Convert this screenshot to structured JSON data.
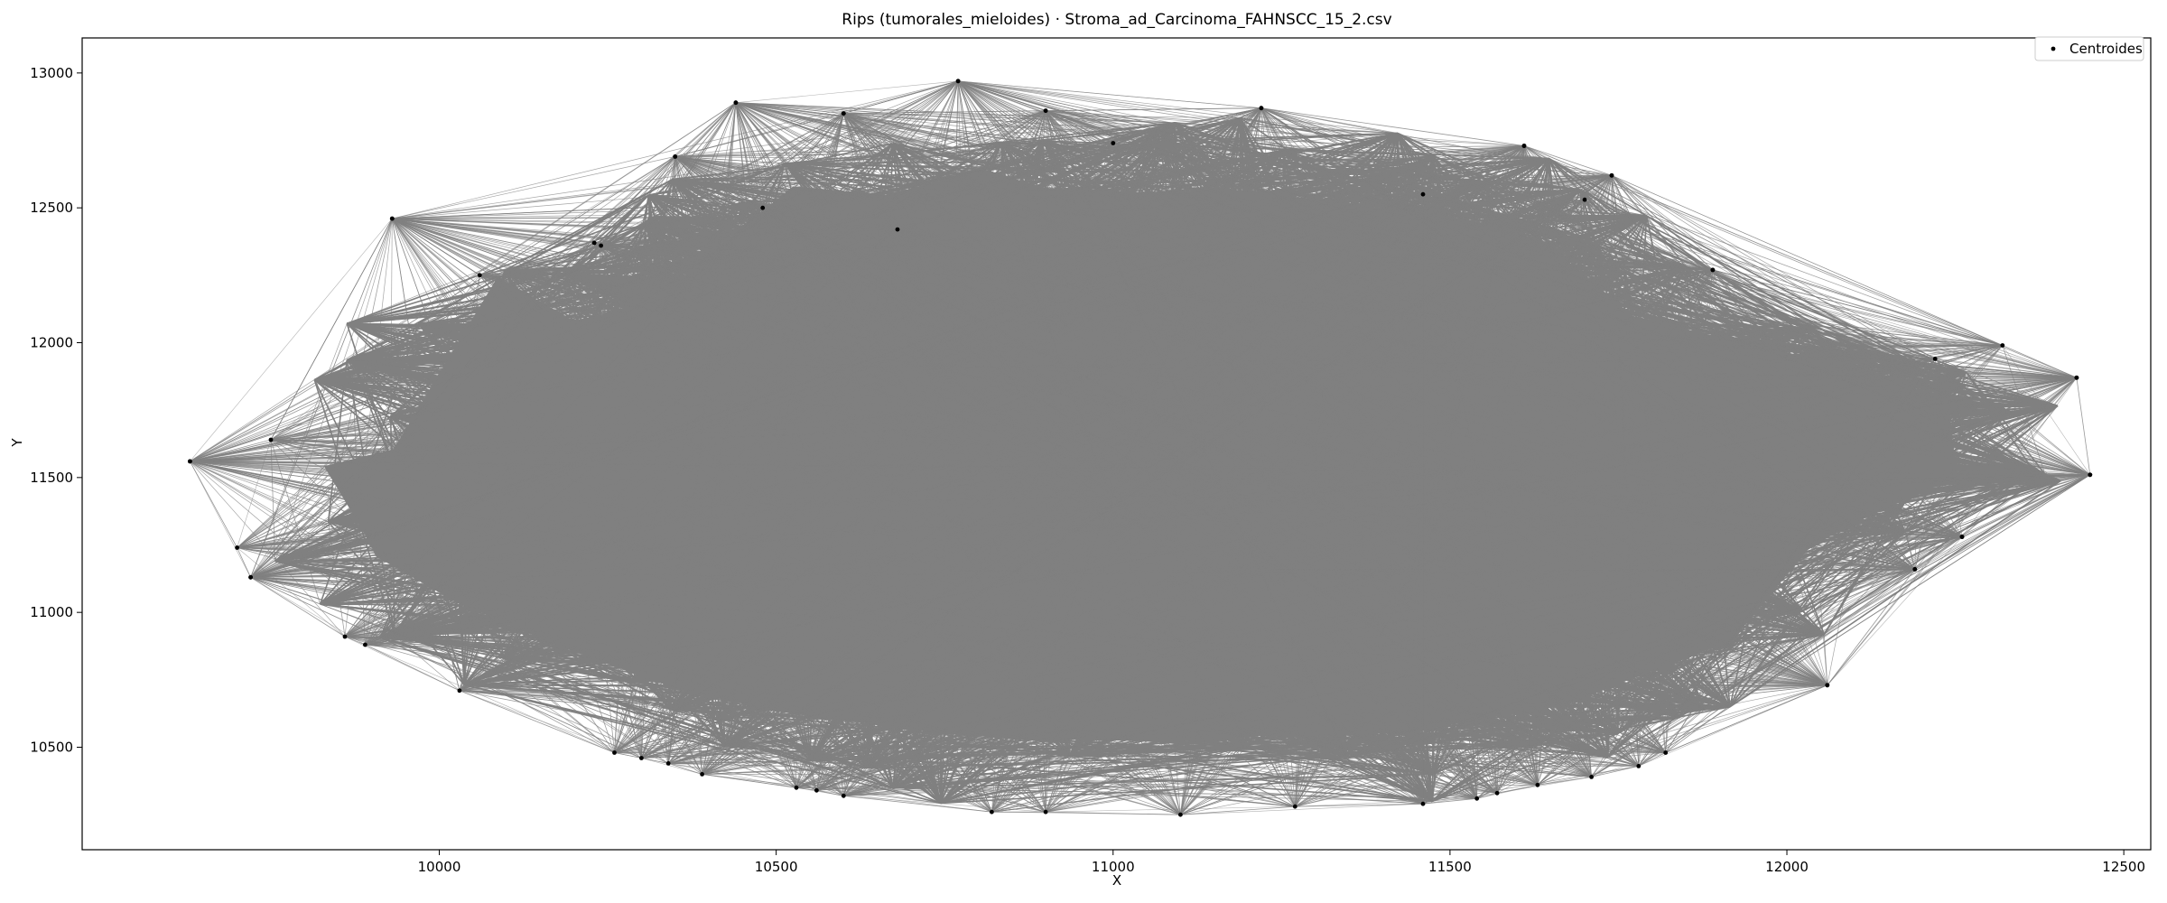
{
  "chart_data": {
    "type": "scatter",
    "title": "Rips (tumorales_mieloides) · Stroma_ad_Carcinoma_FAHNSCC_15_2.csv",
    "xlabel": "X",
    "ylabel": "Y",
    "xlim": [
      9470,
      12540
    ],
    "ylim": [
      10120,
      13130
    ],
    "xticks": [
      10000,
      10500,
      11000,
      11500,
      12000,
      12500
    ],
    "yticks": [
      10500,
      11000,
      11500,
      12000,
      12500,
      13000
    ],
    "xtick_labels": [
      "10000",
      "10500",
      "11000",
      "11500",
      "12000",
      "12500"
    ],
    "ytick_labels": [
      "10500",
      "11000",
      "11500",
      "12000",
      "12500",
      "13000"
    ],
    "grid": false,
    "legend": {
      "position": "top-right",
      "entries": [
        "Centroides"
      ]
    },
    "edge_color": "#808080",
    "point_color": "#000000",
    "series": [
      {
        "name": "Centroides",
        "hull_points": [
          [
            9630,
            11560
          ],
          [
            9700,
            11240
          ],
          [
            9720,
            11130
          ],
          [
            9860,
            10910
          ],
          [
            9890,
            10880
          ],
          [
            10030,
            10710
          ],
          [
            10260,
            10480
          ],
          [
            10300,
            10460
          ],
          [
            10340,
            10440
          ],
          [
            10390,
            10400
          ],
          [
            10530,
            10350
          ],
          [
            10560,
            10340
          ],
          [
            10600,
            10320
          ],
          [
            10820,
            10260
          ],
          [
            10900,
            10260
          ],
          [
            11100,
            10250
          ],
          [
            11270,
            10280
          ],
          [
            11460,
            10290
          ],
          [
            11540,
            10310
          ],
          [
            11570,
            10330
          ],
          [
            11630,
            10360
          ],
          [
            11710,
            10390
          ],
          [
            11780,
            10430
          ],
          [
            11820,
            10480
          ],
          [
            12060,
            10730
          ],
          [
            12190,
            11160
          ],
          [
            12260,
            11280
          ],
          [
            12450,
            11510
          ],
          [
            12430,
            11870
          ],
          [
            12320,
            11990
          ],
          [
            11890,
            12270
          ],
          [
            11740,
            12620
          ],
          [
            11610,
            12730
          ],
          [
            11220,
            12870
          ],
          [
            10900,
            12860
          ],
          [
            10770,
            12970
          ],
          [
            10600,
            12850
          ],
          [
            10440,
            12890
          ],
          [
            10350,
            12690
          ],
          [
            10240,
            12360
          ],
          [
            10060,
            12250
          ],
          [
            9930,
            12460
          ],
          [
            9750,
            11640
          ]
        ],
        "hubs": [
          [
            9930,
            12460
          ],
          [
            10230,
            12370
          ],
          [
            10350,
            12690
          ],
          [
            10440,
            12890
          ],
          [
            10480,
            12500
          ],
          [
            10600,
            12850
          ],
          [
            10680,
            12420
          ],
          [
            10770,
            12970
          ],
          [
            10900,
            12860
          ],
          [
            11000,
            12740
          ],
          [
            11220,
            12870
          ],
          [
            11460,
            12550
          ],
          [
            11610,
            12730
          ],
          [
            11700,
            12530
          ],
          [
            11740,
            12620
          ],
          [
            11890,
            12270
          ],
          [
            12220,
            11940
          ],
          [
            12430,
            11870
          ],
          [
            12450,
            11510
          ],
          [
            12060,
            10730
          ],
          [
            12190,
            11160
          ],
          [
            12260,
            11280
          ],
          [
            9630,
            11560
          ],
          [
            9720,
            11130
          ]
        ]
      }
    ]
  }
}
